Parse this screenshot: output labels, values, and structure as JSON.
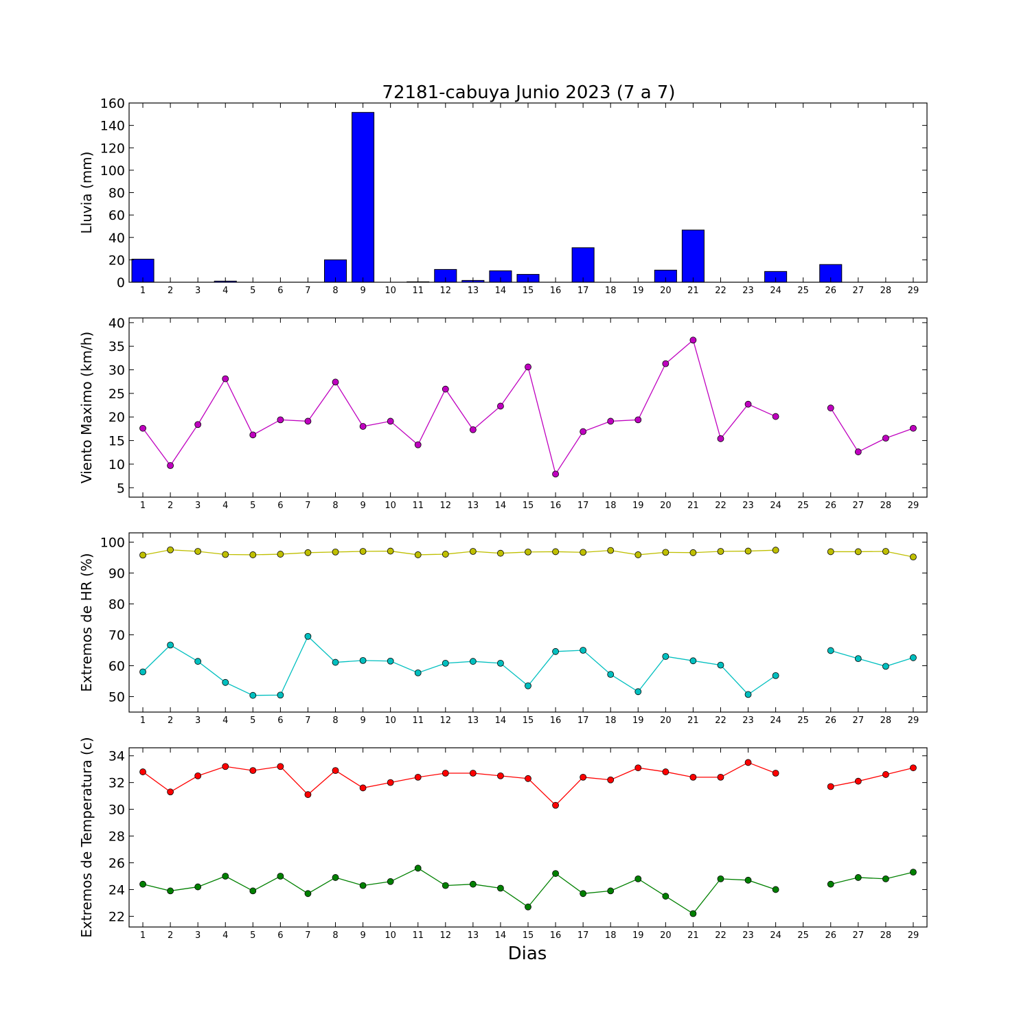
{
  "title": "72181-cabuya Junio 2023  (7 a 7)",
  "xlabel": "Dias",
  "days": [
    "1",
    "2",
    "3",
    "4",
    "5",
    "6",
    "7",
    "8",
    "9",
    "10",
    "11",
    "12",
    "13",
    "14",
    "15",
    "16",
    "17",
    "18",
    "19",
    "20",
    "21",
    "22",
    "23",
    "24",
    "25",
    "26",
    "27",
    "28",
    "29"
  ],
  "chart_data": [
    {
      "type": "bar",
      "ylabel": "Lluvia (mm)",
      "ylim": [
        0,
        160
      ],
      "yticks": [
        0,
        20,
        40,
        60,
        80,
        100,
        120,
        140,
        160
      ],
      "categories": [
        "1",
        "2",
        "3",
        "4",
        "5",
        "6",
        "7",
        "8",
        "9",
        "10",
        "11",
        "12",
        "13",
        "14",
        "15",
        "16",
        "17",
        "18",
        "19",
        "20",
        "21",
        "22",
        "23",
        "24",
        "25",
        "26",
        "27",
        "28",
        "29"
      ],
      "series": [
        {
          "color": "#0000ff",
          "values": [
            20.6,
            0,
            0,
            1.0,
            0,
            0,
            0,
            20.0,
            151.6,
            0,
            0.4,
            11.4,
            1.6,
            10.2,
            7.0,
            0,
            30.8,
            0,
            0,
            10.8,
            46.6,
            0,
            0,
            9.6,
            null,
            15.8,
            0,
            0,
            0
          ]
        }
      ],
      "grid": false
    },
    {
      "type": "line",
      "ylabel": "Viento Maximo (km/h)",
      "ylim": [
        3,
        41
      ],
      "yticks": [
        5,
        10,
        15,
        20,
        25,
        30,
        35,
        40
      ],
      "categories": [
        "1",
        "2",
        "3",
        "4",
        "5",
        "6",
        "7",
        "8",
        "9",
        "10",
        "11",
        "12",
        "13",
        "14",
        "15",
        "16",
        "17",
        "18",
        "19",
        "20",
        "21",
        "22",
        "23",
        "24",
        "25",
        "26",
        "27",
        "28",
        "29"
      ],
      "series": [
        {
          "color": "#bf00bf",
          "values": [
            17.6,
            9.7,
            18.4,
            28.1,
            16.2,
            19.4,
            19.1,
            27.4,
            18.0,
            19.1,
            14.1,
            25.9,
            17.3,
            22.3,
            30.6,
            7.9,
            16.9,
            19.1,
            19.4,
            31.3,
            36.3,
            15.4,
            22.7,
            20.1,
            null,
            21.9,
            12.6,
            15.5,
            17.6
          ]
        }
      ],
      "grid": false
    },
    {
      "type": "line",
      "ylabel": "Extremos de HR (%)",
      "ylim": [
        45,
        103
      ],
      "yticks": [
        50,
        60,
        70,
        80,
        90,
        100
      ],
      "categories": [
        "1",
        "2",
        "3",
        "4",
        "5",
        "6",
        "7",
        "8",
        "9",
        "10",
        "11",
        "12",
        "13",
        "14",
        "15",
        "16",
        "17",
        "18",
        "19",
        "20",
        "21",
        "22",
        "23",
        "24",
        "25",
        "26",
        "27",
        "28",
        "29"
      ],
      "series": [
        {
          "color": "#bfbf00",
          "values": [
            95.8,
            97.5,
            97.0,
            96.0,
            95.9,
            96.1,
            96.6,
            96.8,
            97.0,
            97.1,
            95.9,
            96.1,
            97.0,
            96.4,
            96.8,
            96.9,
            96.7,
            97.3,
            95.9,
            96.7,
            96.6,
            97.0,
            97.1,
            97.4,
            null,
            96.9,
            96.9,
            97.0,
            95.2
          ]
        },
        {
          "color": "#00bfbf",
          "values": [
            58.0,
            66.7,
            61.4,
            54.6,
            50.4,
            50.5,
            69.5,
            61.1,
            61.7,
            61.5,
            57.7,
            60.8,
            61.4,
            60.8,
            53.5,
            64.6,
            65.0,
            57.2,
            51.6,
            63.0,
            61.6,
            60.2,
            50.7,
            56.8,
            null,
            64.9,
            62.3,
            59.8,
            62.6
          ]
        }
      ],
      "grid": false
    },
    {
      "type": "line",
      "ylabel": "Extremos de Temperatura (c)",
      "ylim": [
        21.2,
        34.6
      ],
      "yticks": [
        22,
        24,
        26,
        28,
        30,
        32,
        34
      ],
      "categories": [
        "1",
        "2",
        "3",
        "4",
        "5",
        "6",
        "7",
        "8",
        "9",
        "10",
        "11",
        "12",
        "13",
        "14",
        "15",
        "16",
        "17",
        "18",
        "19",
        "20",
        "21",
        "22",
        "23",
        "24",
        "25",
        "26",
        "27",
        "28",
        "29"
      ],
      "series": [
        {
          "color": "#ff0000",
          "values": [
            32.8,
            31.3,
            32.5,
            33.2,
            32.9,
            33.2,
            31.1,
            32.9,
            31.6,
            32.0,
            32.4,
            32.7,
            32.7,
            32.5,
            32.3,
            30.3,
            32.4,
            32.2,
            33.1,
            32.8,
            32.4,
            32.4,
            33.5,
            32.7,
            null,
            31.7,
            32.1,
            32.6,
            33.1
          ]
        },
        {
          "color": "#008000",
          "values": [
            24.4,
            23.9,
            24.2,
            25.0,
            23.9,
            25.0,
            23.7,
            24.9,
            24.3,
            24.6,
            25.6,
            24.3,
            24.4,
            24.1,
            22.7,
            25.2,
            23.7,
            23.9,
            24.8,
            23.5,
            22.2,
            24.8,
            24.7,
            24.0,
            null,
            24.4,
            24.9,
            24.8,
            25.3
          ]
        }
      ],
      "grid": false
    }
  ]
}
